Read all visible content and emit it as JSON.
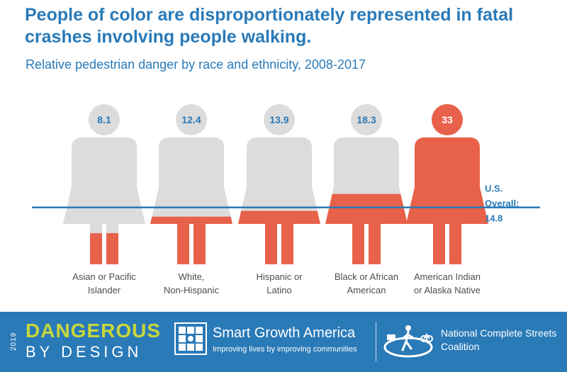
{
  "header": {
    "title": "People of color are disproportionately represented in fatal crashes involving people walking.",
    "subtitle": "Relative pedestrian danger by race and ethnicity, 2008-2017"
  },
  "chart_data": {
    "type": "bar",
    "title": "People of color are disproportionately represented in fatal crashes involving people walking.",
    "subtitle": "Relative pedestrian danger by race and ethnicity, 2008-2017",
    "categories": [
      [
        "Asian or Pacific",
        "Islander"
      ],
      [
        "White,",
        "Non-Hispanic"
      ],
      [
        "Hispanic or",
        "Latino"
      ],
      [
        "Black or African",
        "American"
      ],
      [
        "American Indian",
        "or Alaska Native"
      ]
    ],
    "values": [
      8.1,
      12.4,
      13.9,
      18.3,
      33
    ],
    "value_labels": [
      "8.1",
      "12.4",
      "13.9",
      "18.3",
      "33"
    ],
    "ylim": [
      0,
      33
    ],
    "reference_line": {
      "value": 14.8,
      "label_lines": [
        "U.S.",
        "Overall:",
        "14.8"
      ]
    },
    "grid": false,
    "legend": "none",
    "colors": {
      "fill": "#e8614a",
      "empty": "#dcdcdc",
      "value_text_empty": "#2a7ab8",
      "value_text_full": "#ffffff",
      "reference_line": "#2a7ab8"
    }
  },
  "footer": {
    "background": "#2a7ab8",
    "dangerous": {
      "year": "2019",
      "word1": "DANGEROUS",
      "word2": "BY DESIGN",
      "accent": "#c7d73c"
    },
    "sga": {
      "name": "Smart Growth America",
      "tagline": "Improving lives by improving communities",
      "icon": "building-grid-icon"
    },
    "ncsc": {
      "name": "National Complete Streets Coalition",
      "icon": "pedestrian-street-icon"
    }
  }
}
